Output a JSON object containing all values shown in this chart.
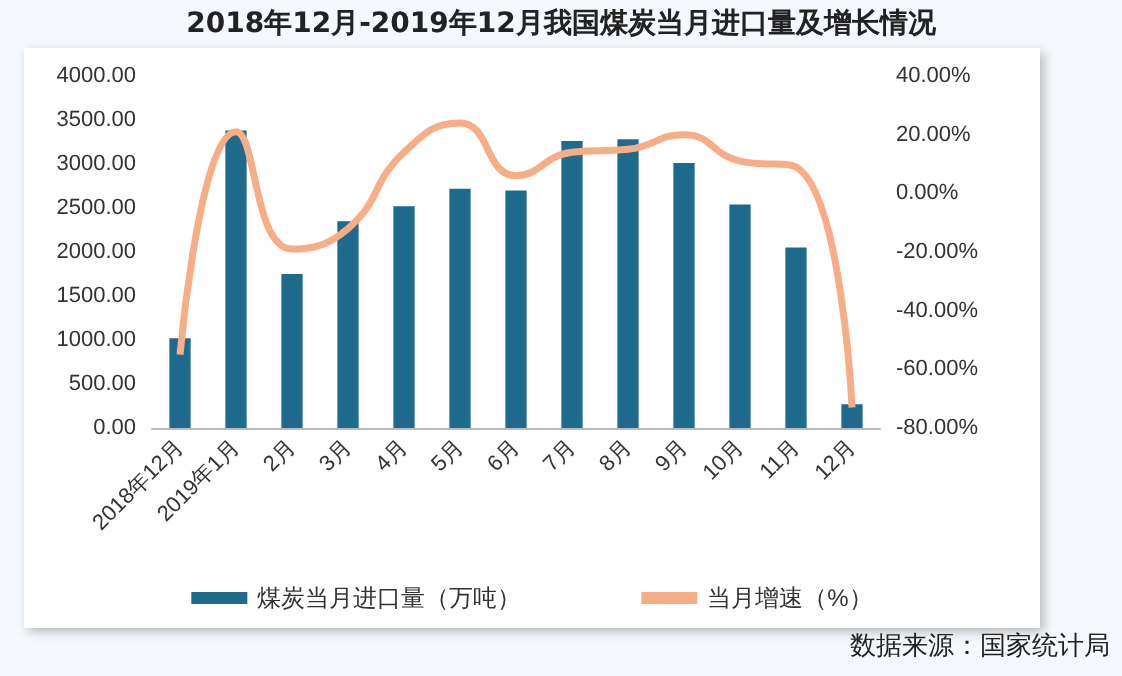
{
  "chart_data": {
    "type": "bar",
    "title": "2018年12月-2019年12月我国煤炭当月进口量及增长情况",
    "categories": [
      "2018年12月",
      "2019年1月",
      "2月",
      "3月",
      "4月",
      "5月",
      "6月",
      "7月",
      "8月",
      "9月",
      "10月",
      "11月",
      "12月"
    ],
    "series": [
      {
        "name": "煤炭当月进口量（万吨）",
        "color": "#1f6b8e",
        "values": [
          1020,
          3380,
          1750,
          2350,
          2520,
          2720,
          2700,
          3260,
          3280,
          3010,
          2540,
          2050,
          270
        ]
      },
      {
        "name": "当月增速（%）",
        "type": "line",
        "axis": "y2",
        "color": "#f7ae86",
        "values": [
          -55,
          21,
          -19,
          -12,
          14,
          24,
          6,
          14,
          15,
          20,
          11,
          9,
          -73
        ]
      }
    ],
    "ylim": [
      0,
      4000
    ],
    "yticks": [
      {
        "value": 0,
        "label": "0.00"
      },
      {
        "value": 500,
        "label": "500.00"
      },
      {
        "value": 1000,
        "label": "1000.00"
      },
      {
        "value": 1500,
        "label": "1500.00"
      },
      {
        "value": 2000,
        "label": "2000.00"
      },
      {
        "value": 2500,
        "label": "2500.00"
      },
      {
        "value": 3000,
        "label": "3000.00"
      },
      {
        "value": 3500,
        "label": "3500.00"
      },
      {
        "value": 4000,
        "label": "4000.00"
      }
    ],
    "y2lim": [
      -80,
      40
    ],
    "y2ticks": [
      {
        "value": -80,
        "label": "-80.00%"
      },
      {
        "value": -60,
        "label": "-60.00%"
      },
      {
        "value": -40,
        "label": "-40.00%"
      },
      {
        "value": -20,
        "label": "-20.00%"
      },
      {
        "value": 0,
        "label": "0.00%"
      },
      {
        "value": 20,
        "label": "20.00%"
      },
      {
        "value": 40,
        "label": "40.00%"
      }
    ],
    "legend": "bottom",
    "grid": false,
    "marker": "none",
    "annotations": [
      "数据来源：国家统计局"
    ]
  }
}
